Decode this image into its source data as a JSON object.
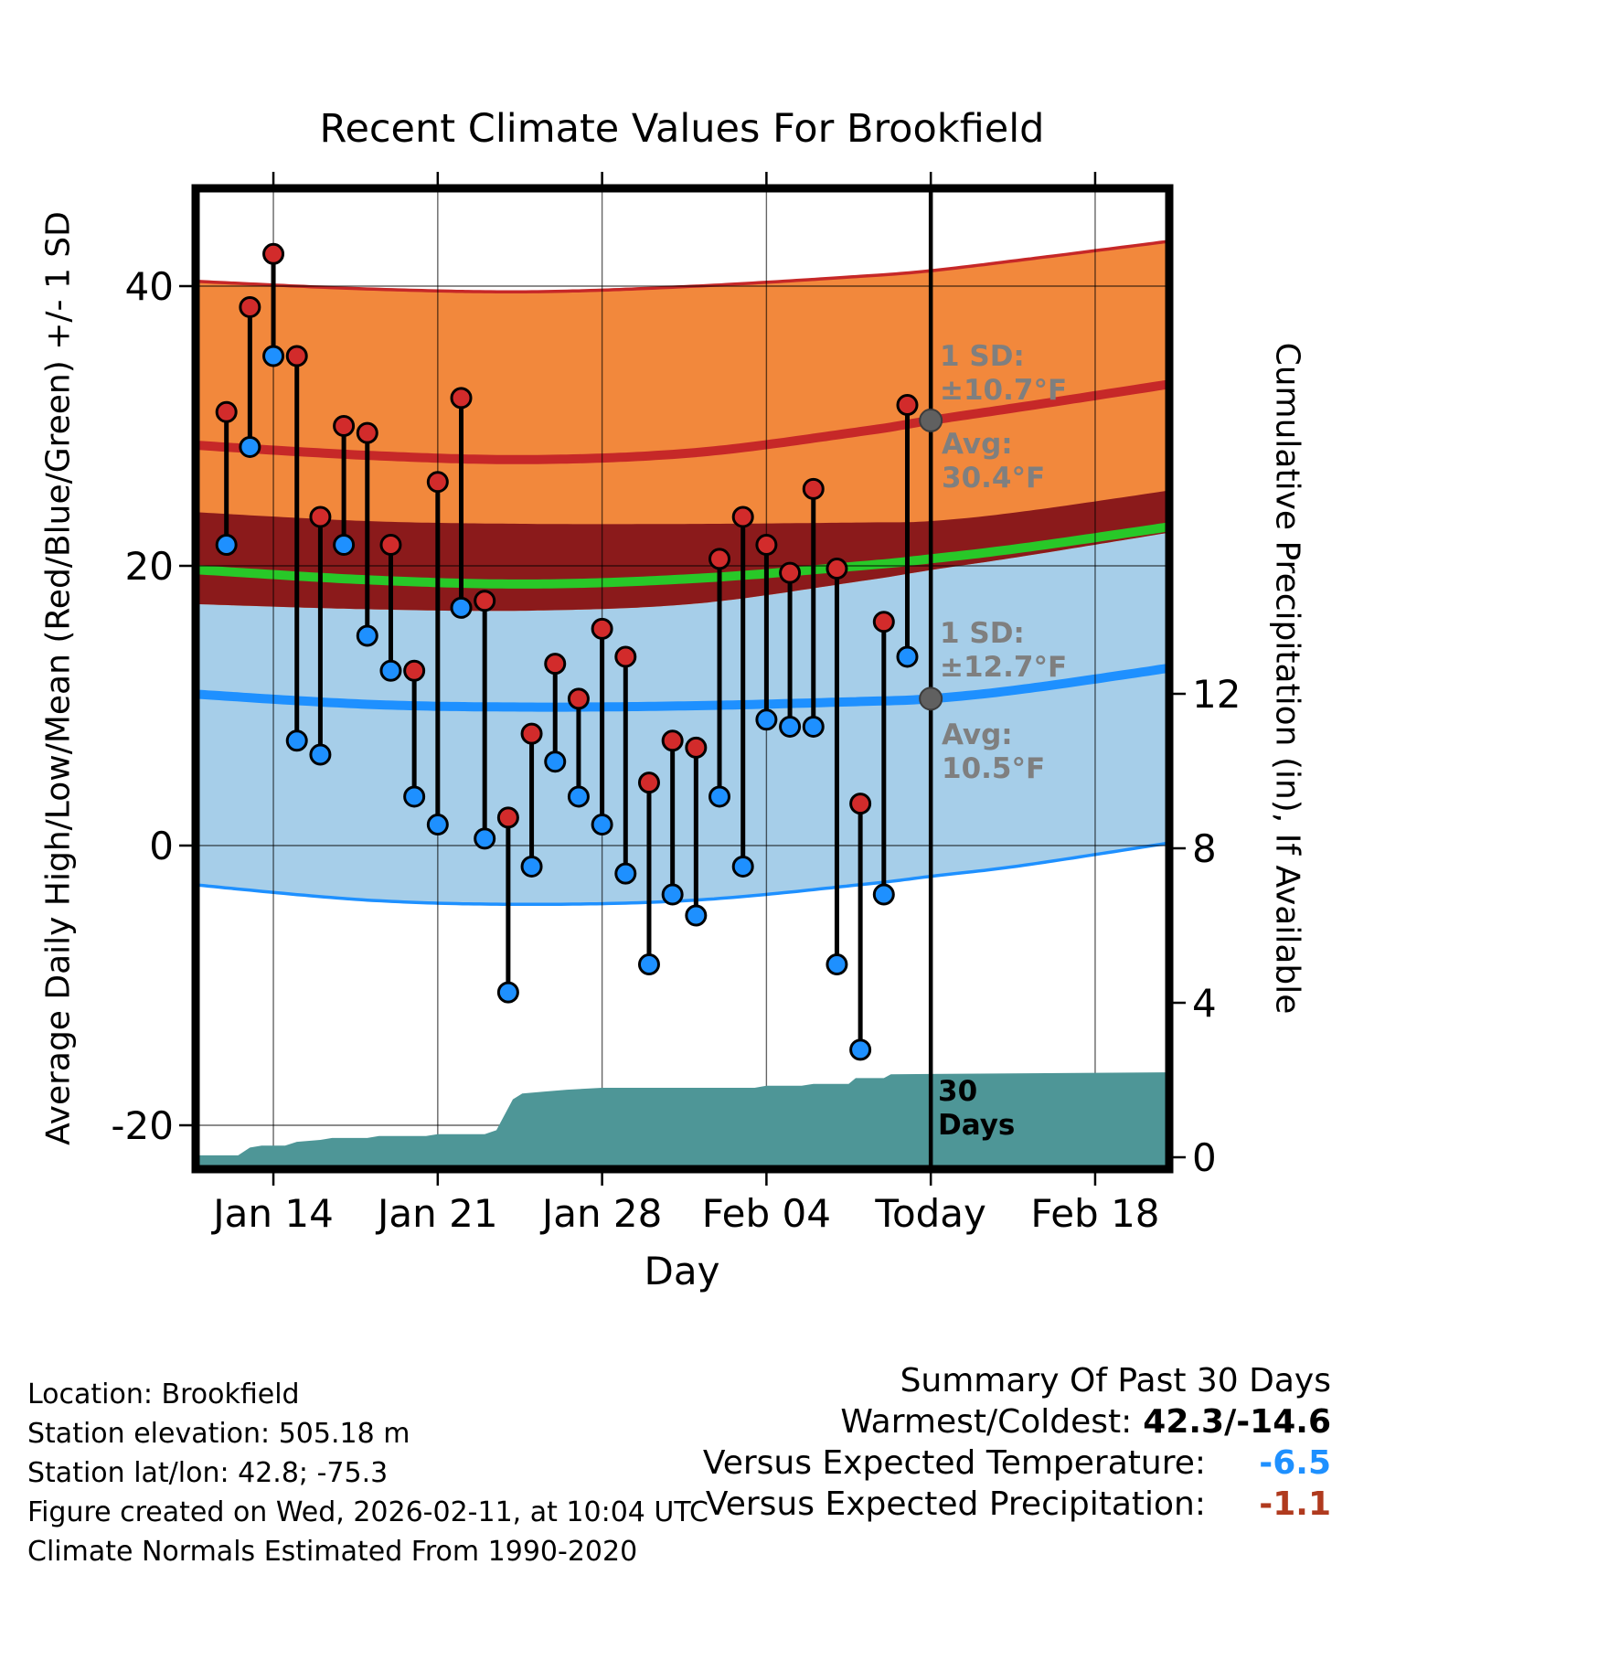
{
  "title": "Recent Climate Values For Brookfield",
  "axes": {
    "left_label": "Average Daily High/Low/Mean (Red/Blue/Green) +/- 1 SD",
    "right_label": "Cumulative Precipitation (in), If Available",
    "x_label": "Day",
    "x_ticks": [
      {
        "day": 3,
        "label": "Jan 14"
      },
      {
        "day": 10,
        "label": "Jan 21"
      },
      {
        "day": 17,
        "label": "Jan 28"
      },
      {
        "day": 24,
        "label": "Feb 04"
      },
      {
        "day": 31,
        "label": "Today"
      },
      {
        "day": 38,
        "label": "Feb 18"
      }
    ],
    "left_ticks": [
      {
        "value": 40,
        "label": "40"
      },
      {
        "value": 20,
        "label": "20"
      },
      {
        "value": 0,
        "label": "0"
      },
      {
        "value": -20,
        "label": "-20"
      }
    ],
    "right_ticks": [
      {
        "value": 12,
        "label": "12"
      },
      {
        "value": 8,
        "label": "8"
      },
      {
        "value": 4,
        "label": "4"
      },
      {
        "value": 0,
        "label": "0"
      }
    ]
  },
  "chart_data": {
    "type": "line",
    "description": "Daily observed high/low temperature bars versus climate normal bands (+/- 1 SD) with cumulative precipitation area",
    "x_range_dates": [
      "Jan 11",
      "Feb 21"
    ],
    "temp_ylim": [
      -22.9,
      46.7
    ],
    "precip_ylim": [
      0,
      25.2
    ],
    "daily": {
      "dates": [
        "Jan 12",
        "Jan 13",
        "Jan 14",
        "Jan 15",
        "Jan 16",
        "Jan 17",
        "Jan 18",
        "Jan 19",
        "Jan 20",
        "Jan 21",
        "Jan 22",
        "Jan 23",
        "Jan 24",
        "Jan 25",
        "Jan 26",
        "Jan 27",
        "Jan 28",
        "Jan 29",
        "Jan 30",
        "Jan 31",
        "Feb 01",
        "Feb 02",
        "Feb 03",
        "Feb 04",
        "Feb 05",
        "Feb 06",
        "Feb 07",
        "Feb 08",
        "Feb 09",
        "Feb 10"
      ],
      "highs": [
        31.0,
        38.5,
        42.3,
        35.0,
        23.5,
        30.0,
        29.5,
        21.5,
        12.5,
        26.0,
        32.0,
        17.5,
        2.0,
        8.0,
        13.0,
        10.5,
        15.5,
        13.5,
        4.5,
        7.5,
        7.0,
        20.5,
        23.5,
        21.5,
        19.5,
        25.5,
        19.8,
        3.0,
        16.0,
        31.5
      ],
      "lows": [
        21.5,
        28.5,
        35.0,
        7.5,
        6.5,
        21.5,
        15.0,
        12.5,
        3.5,
        1.5,
        17.0,
        0.5,
        -10.5,
        -1.5,
        6.0,
        3.5,
        1.5,
        -2.0,
        -8.5,
        -3.5,
        -5.0,
        3.5,
        -1.5,
        9.0,
        8.5,
        8.5,
        -8.5,
        -14.6,
        -3.5,
        13.5
      ]
    },
    "normals": {
      "days": [
        -1,
        7,
        14,
        21,
        28,
        31,
        35,
        41.6
      ],
      "high_upper": [
        40.4,
        39.8,
        39.6,
        40.0,
        40.7,
        41.1,
        41.9,
        43.3
      ],
      "high_avg": [
        28.7,
        27.9,
        27.6,
        28.1,
        29.6,
        30.4,
        31.4,
        33.1
      ],
      "high_lower": [
        17.3,
        16.9,
        16.8,
        17.3,
        18.9,
        19.7,
        20.7,
        22.5
      ],
      "low_upper": [
        23.9,
        23.2,
        23.0,
        23.0,
        23.1,
        23.2,
        23.9,
        25.5
      ],
      "low_avg": [
        10.9,
        10.1,
        9.9,
        10.0,
        10.3,
        10.5,
        11.2,
        12.8
      ],
      "low_lower": [
        -2.7,
        -3.9,
        -4.2,
        -3.9,
        -2.8,
        -2.2,
        -1.4,
        0.3
      ],
      "mean": [
        19.8,
        19.0,
        18.7,
        19.1,
        20.0,
        20.5,
        21.3,
        22.9
      ]
    },
    "precip": {
      "days": [
        -0.5,
        1.5,
        2.0,
        2.5,
        3.5,
        4.0,
        5.0,
        5.5,
        7.0,
        7.5,
        9.5,
        10.0,
        12.0,
        12.5,
        13.2,
        13.6,
        14.5,
        15.5,
        17.0,
        19.0,
        21.0,
        23.5,
        24.0,
        25.5,
        26.0,
        27.5,
        27.8,
        29.0,
        29.3,
        41.5
      ],
      "cumulative_in": [
        0.05,
        0.05,
        0.25,
        0.3,
        0.3,
        0.4,
        0.45,
        0.5,
        0.5,
        0.55,
        0.55,
        0.6,
        0.6,
        0.7,
        1.5,
        1.65,
        1.7,
        1.75,
        1.8,
        1.8,
        1.8,
        1.8,
        1.85,
        1.85,
        1.9,
        1.9,
        2.05,
        2.05,
        2.15,
        2.2
      ]
    },
    "today": {
      "day": 31,
      "avg_high": 30.4,
      "sd_high": 10.7,
      "avg_low": 10.5,
      "sd_low": 12.7
    }
  },
  "annotations": {
    "high": {
      "sd_label": "1 SD:",
      "sd_value": "±10.7°F",
      "avg_label": "Avg:",
      "avg_value": "30.4°F"
    },
    "low": {
      "sd_label": "1 SD:",
      "sd_value": "±12.7°F",
      "avg_label": "Avg:",
      "avg_value": "10.5°F"
    },
    "period_line1": "30",
    "period_line2": "Days"
  },
  "footer": {
    "lines": [
      "Location: Brookfield",
      "Station elevation: 505.18 m",
      "Station lat/lon: 42.8; -75.3",
      "Figure created on Wed, 2026-02-11, at 10:04 UTC",
      "Climate Normals Estimated From 1990-2020"
    ]
  },
  "summary": {
    "title": "Summary Of Past 30 Days",
    "warmest_label": "Warmest/Coldest:",
    "warmest_value": "42.3/-14.6",
    "temp_label": "Versus Expected Temperature:",
    "temp_value": "-6.5",
    "precip_label": "Versus Expected Precipitation:",
    "precip_value": "-1.1"
  },
  "colors": {
    "high_band": "#F2883C",
    "high_line": "#C62828",
    "overlap_band": "#8B1A1B",
    "mean_line": "#28C828",
    "low_band": "#A6CEE9",
    "low_line": "#1E90FF",
    "precip_fill": "#4E9697",
    "high_dot": "#D22B2B",
    "low_dot": "#1E90FF",
    "annotation_gray": "#7F7F7F",
    "temp_delta": "#1E90FF",
    "precip_delta": "#B03A1E"
  }
}
